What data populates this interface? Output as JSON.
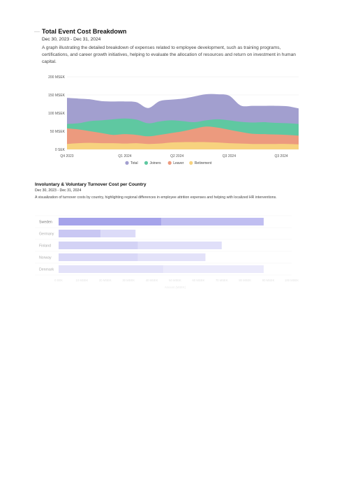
{
  "report": {
    "chart1": {
      "title": "Total Event Cost Breakdown",
      "date_range": "Dec 30, 2023 - Dec 31, 2024",
      "description": "A graph illustrating the detailed breakdown of expenses related to employee development, such as training programs, certifications, and career growth initiatives, helping to evaluate the allocation of resources and return on investment in human capital."
    },
    "chart2": {
      "title": "Involuntary & Voluntary Turnover Cost per Country",
      "date_range": "Dec 30, 2023 - Dec 31, 2024",
      "description": "A visualization of turnover costs by country, highlighting regional differences in employee attrition expenses and helping with localized HR interventions."
    }
  },
  "chart_data": [
    {
      "type": "area",
      "stacked": false,
      "x": [
        0,
        1,
        2,
        3,
        4,
        5,
        6,
        7,
        8,
        9,
        10,
        11,
        12,
        13,
        14,
        15,
        16,
        17,
        18,
        19,
        20
      ],
      "x_tick_labels": [
        {
          "x": 0,
          "label": "Q4 2023"
        },
        {
          "x": 5,
          "label": "Q1 2024"
        },
        {
          "x": 9.5,
          "label": "Q2 2024"
        },
        {
          "x": 14,
          "label": "Q3 2024"
        },
        {
          "x": 18.5,
          "label": "Q3 2024"
        }
      ],
      "y_ticks": [
        0,
        50,
        100,
        150,
        200
      ],
      "y_tick_labels": [
        "0 SEK",
        "50 MSEK",
        "100 MSEK",
        "150 MSEK",
        "200 MSEK"
      ],
      "ylim": [
        0,
        200
      ],
      "grid": true,
      "legend_position": "bottom",
      "series": [
        {
          "name": "Total",
          "color": "#a29fcf",
          "values": [
            142,
            140,
            138,
            133,
            132,
            132,
            130,
            114,
            133,
            137,
            140,
            146,
            152,
            152,
            148,
            121,
            120,
            120,
            120,
            119,
            113
          ]
        },
        {
          "name": "Joiners",
          "color": "#5fc8a1",
          "values": [
            70,
            72,
            78,
            80,
            83,
            85,
            82,
            72,
            77,
            80,
            78,
            75,
            80,
            83,
            80,
            76,
            74,
            75,
            73,
            72,
            70
          ]
        },
        {
          "name": "Leaver",
          "color": "#ec9a7e",
          "values": [
            58,
            55,
            50,
            45,
            40,
            42,
            40,
            36,
            40,
            45,
            50,
            57,
            63,
            60,
            54,
            48,
            43,
            42,
            41,
            40,
            38
          ]
        },
        {
          "name": "Retirement",
          "color": "#f7d27e",
          "values": [
            15,
            17,
            18,
            17,
            17,
            16,
            17,
            15,
            16,
            19,
            20,
            20,
            20,
            19,
            17,
            16,
            15,
            15,
            15,
            15,
            14
          ]
        }
      ]
    },
    {
      "type": "bar",
      "orientation": "horizontal",
      "stacked": true,
      "categories": [
        "Sweden",
        "Germany",
        "Finland",
        "Norway",
        "Denmark"
      ],
      "x_ticks": [
        0,
        10,
        20,
        30,
        40,
        50,
        60,
        70,
        80,
        90,
        100
      ],
      "x_tick_labels": [
        "0 SEK",
        "10 MSEK",
        "20 MSEK",
        "30 MSEK",
        "40 MSEK",
        "50 MSEK",
        "60 MSEK",
        "70 MSEK",
        "80 MSEK",
        "90 MSEK",
        "100 MSEK"
      ],
      "xlim": [
        0,
        100
      ],
      "xlabel": "Amount (MSEK)",
      "series": [
        {
          "values": [
            44,
            18,
            34,
            34,
            45
          ],
          "colors": [
            "#a5a3ea",
            "#c9c7f3",
            "#d3d2f5",
            "#d9d8f7",
            "#e3e2f9"
          ]
        },
        {
          "values": [
            44,
            15,
            36,
            29,
            43
          ],
          "colors": [
            "#c0bef1",
            "#dcdbf8",
            "#e0dff9",
            "#e3e2f9",
            "#ebeafb"
          ]
        }
      ]
    }
  ]
}
